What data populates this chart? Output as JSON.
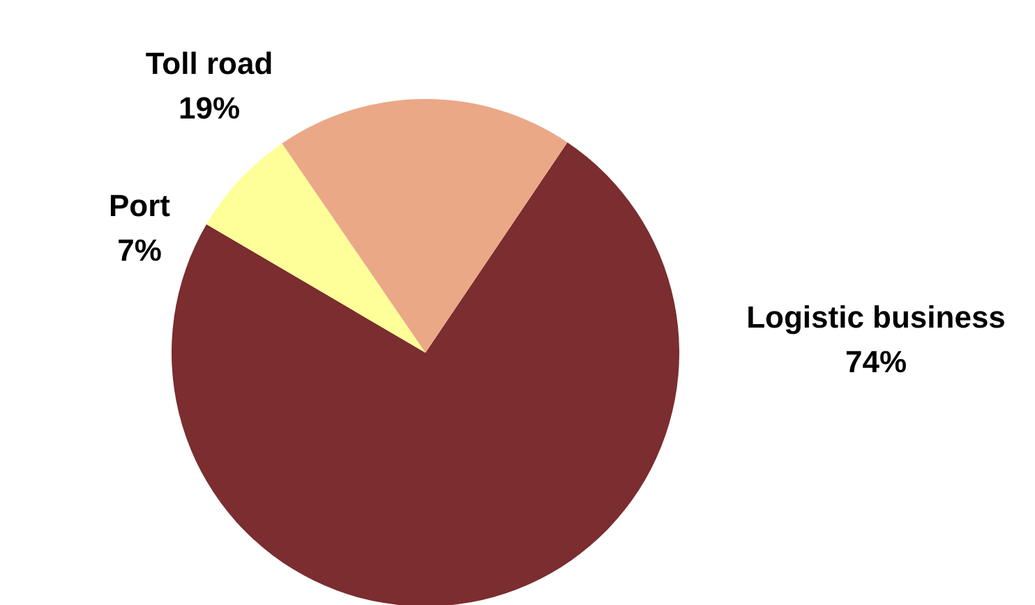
{
  "chart_data": {
    "type": "pie",
    "categories": [
      "Logistic business",
      "Port",
      "Toll road"
    ],
    "values": [
      74,
      7,
      19
    ],
    "value_labels": [
      "74%",
      "7%",
      "19%"
    ],
    "colors": [
      "#7b2d2f",
      "#ffff99",
      "#eba887"
    ]
  }
}
